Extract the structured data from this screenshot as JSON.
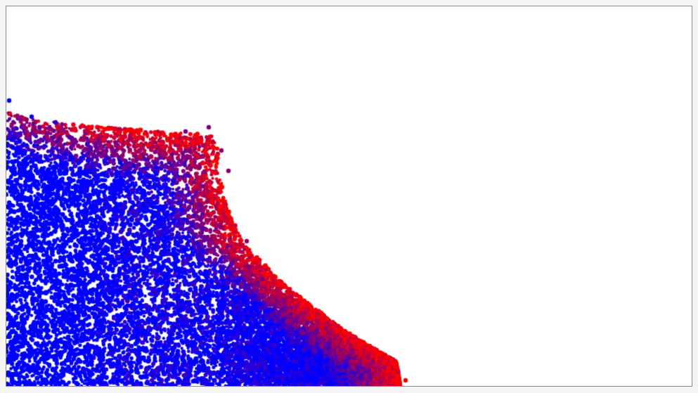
{
  "simulation": {
    "color_cold": "#0000ff",
    "color_hot": "#ff0000",
    "background": "#ffffff",
    "frame_border_color": "#8c8c8c"
  }
}
